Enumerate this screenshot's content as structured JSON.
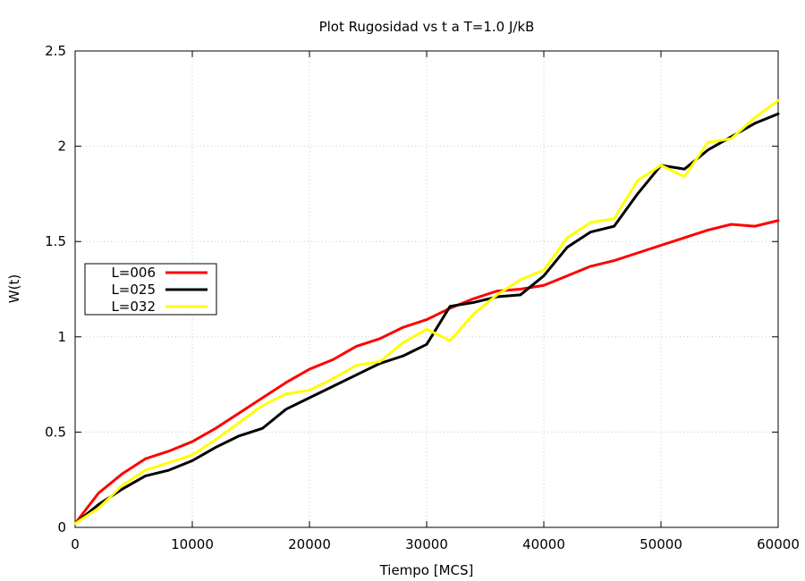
{
  "chart_data": {
    "type": "line",
    "title": "Plot Rugosidad vs t a T=1.0 J/kB",
    "xlabel": "Tiempo [MCS]",
    "ylabel": "W(t)",
    "xlim": [
      0,
      60000
    ],
    "ylim": [
      0,
      2.5
    ],
    "x_ticks": [
      "0",
      "10000",
      "20000",
      "30000",
      "40000",
      "50000",
      "60000"
    ],
    "y_ticks": [
      "0",
      "0.5",
      "1",
      "1.5",
      "2",
      "2.5"
    ],
    "grid": true,
    "legend_position": "left-middle",
    "series": [
      {
        "name": "L=006",
        "color": "#ff0000",
        "x": [
          0,
          2000,
          4000,
          6000,
          8000,
          10000,
          12000,
          14000,
          16000,
          18000,
          20000,
          22000,
          24000,
          26000,
          28000,
          30000,
          32000,
          34000,
          36000,
          38000,
          40000,
          42000,
          44000,
          46000,
          48000,
          50000,
          52000,
          54000,
          56000,
          58000,
          60000
        ],
        "y": [
          0.02,
          0.18,
          0.28,
          0.36,
          0.4,
          0.45,
          0.52,
          0.6,
          0.68,
          0.76,
          0.83,
          0.88,
          0.95,
          0.99,
          1.05,
          1.09,
          1.15,
          1.2,
          1.24,
          1.25,
          1.27,
          1.32,
          1.37,
          1.4,
          1.44,
          1.48,
          1.52,
          1.56,
          1.59,
          1.58,
          1.61
        ]
      },
      {
        "name": "L=025",
        "color": "#000000",
        "x": [
          0,
          2000,
          4000,
          6000,
          8000,
          10000,
          12000,
          14000,
          16000,
          18000,
          20000,
          22000,
          24000,
          26000,
          28000,
          30000,
          32000,
          34000,
          36000,
          38000,
          40000,
          42000,
          44000,
          46000,
          48000,
          50000,
          52000,
          54000,
          56000,
          58000,
          60000
        ],
        "y": [
          0.02,
          0.12,
          0.2,
          0.27,
          0.3,
          0.35,
          0.42,
          0.48,
          0.52,
          0.62,
          0.68,
          0.74,
          0.8,
          0.86,
          0.9,
          0.96,
          1.16,
          1.18,
          1.21,
          1.22,
          1.32,
          1.47,
          1.55,
          1.58,
          1.75,
          1.9,
          1.88,
          1.98,
          2.05,
          2.12,
          2.17
        ]
      },
      {
        "name": "L=032",
        "color": "#ffff00",
        "x": [
          0,
          2000,
          4000,
          6000,
          8000,
          10000,
          12000,
          14000,
          16000,
          18000,
          20000,
          22000,
          24000,
          26000,
          28000,
          30000,
          32000,
          34000,
          36000,
          38000,
          40000,
          42000,
          44000,
          46000,
          48000,
          50000,
          52000,
          54000,
          56000,
          58000,
          60000
        ],
        "y": [
          0.02,
          0.1,
          0.22,
          0.3,
          0.34,
          0.38,
          0.46,
          0.55,
          0.64,
          0.7,
          0.72,
          0.78,
          0.85,
          0.87,
          0.97,
          1.04,
          0.98,
          1.12,
          1.22,
          1.3,
          1.35,
          1.52,
          1.6,
          1.62,
          1.82,
          1.9,
          1.84,
          2.02,
          2.04,
          2.15,
          2.24
        ]
      }
    ]
  }
}
